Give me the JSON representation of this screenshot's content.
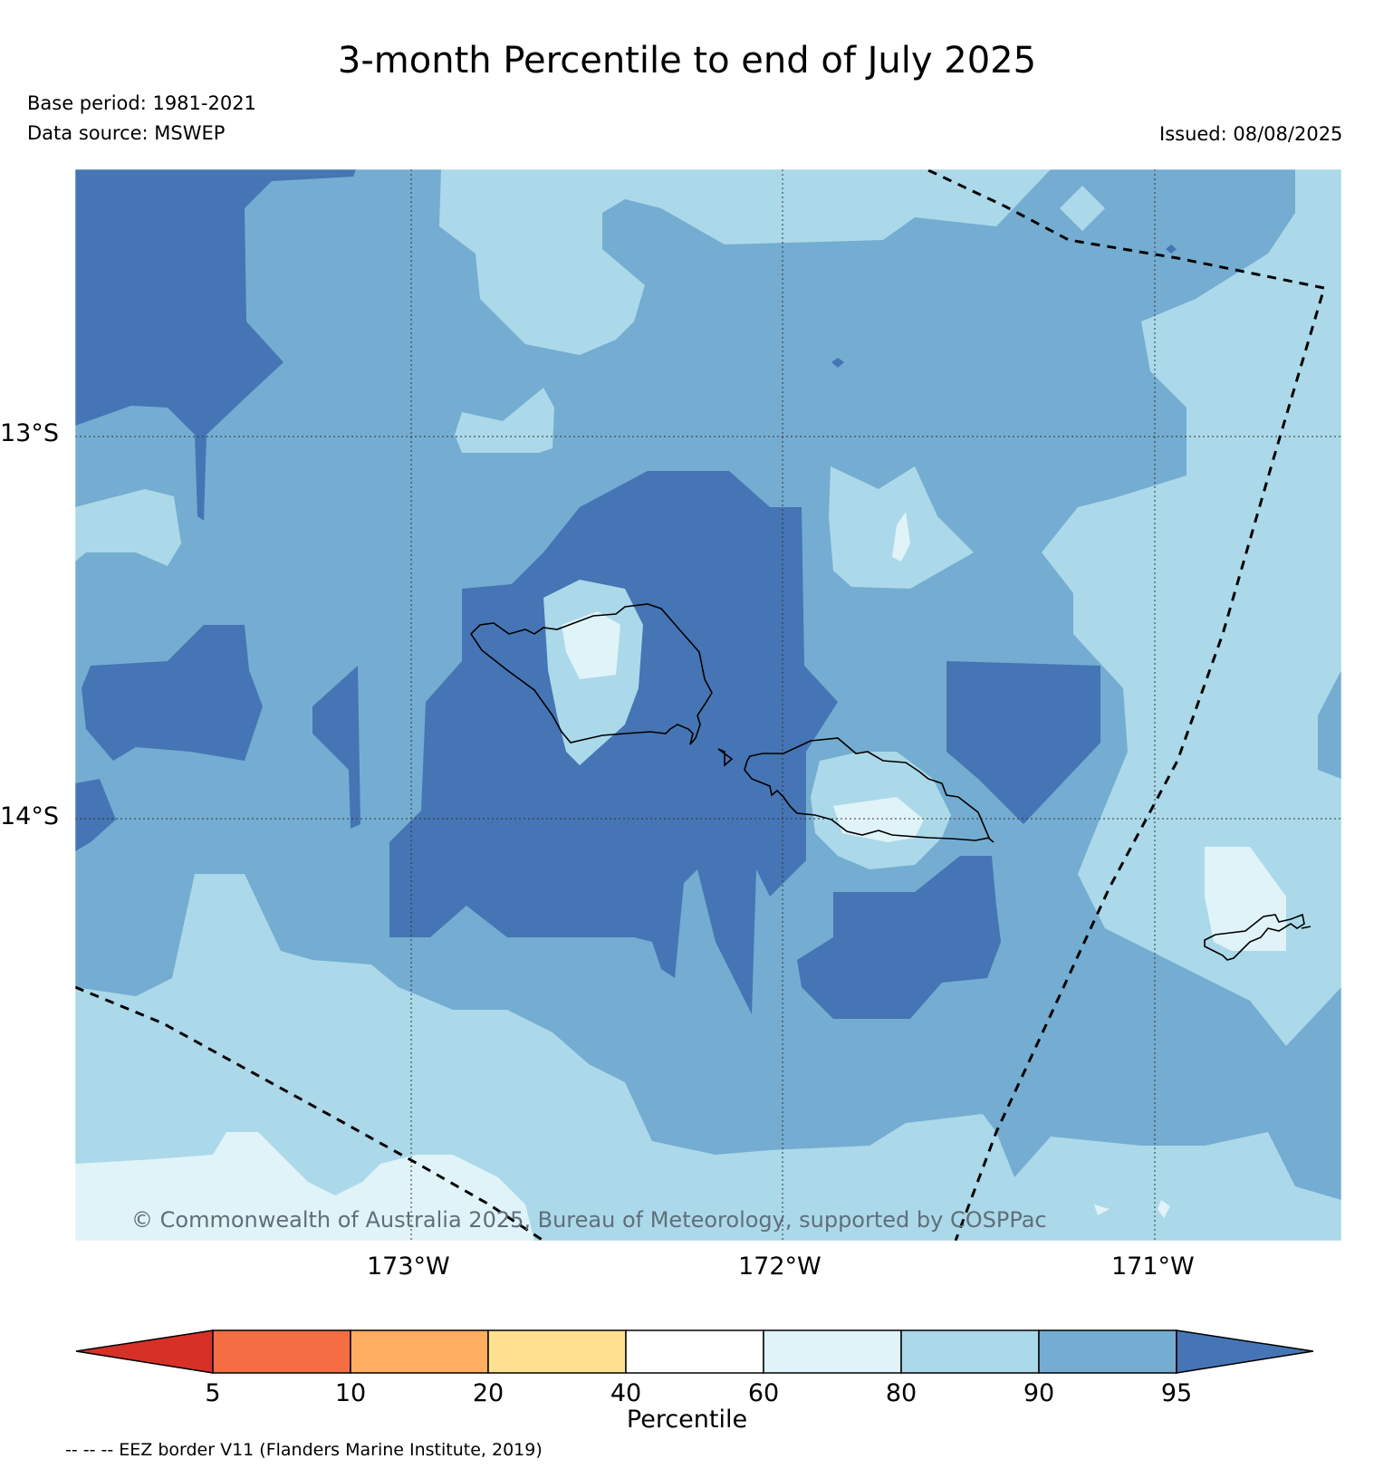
{
  "title": "3-month Percentile to end of July 2025",
  "base_period": "Base period: 1981-2021",
  "data_source": "Data source: MSWEP",
  "issued": "Issued: 08/08/2025",
  "copyright": "© Commonwealth of Australia 2025, Bureau of Meteorology, supported by COSPPac",
  "lat_labels": [
    "13°S",
    "14°S"
  ],
  "lon_labels": [
    "173°W",
    "172°W",
    "171°W"
  ],
  "colorbar": {
    "title": "Percentile",
    "ticks": [
      "5",
      "10",
      "20",
      "40",
      "60",
      "80",
      "90",
      "95"
    ],
    "colors": [
      "#d73027",
      "#f46d43",
      "#fdae61",
      "#fee090",
      "#ffffff",
      "#e0f3f8",
      "#abd9e9",
      "#74add1",
      "#4575b4"
    ]
  },
  "footnote": "-- -- -- EEZ border V11 (Flanders Marine Institute, 2019)"
}
